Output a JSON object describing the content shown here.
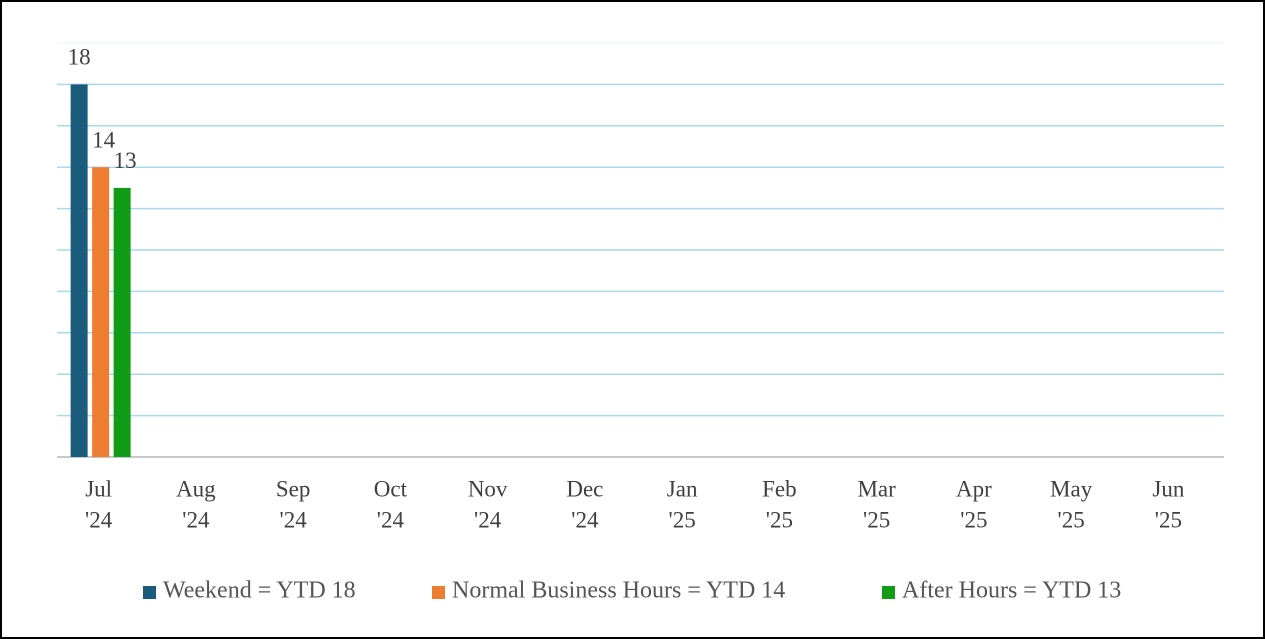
{
  "chart_data": {
    "type": "bar",
    "categories": [
      [
        "Jul",
        "'24"
      ],
      [
        "Aug",
        "'24"
      ],
      [
        "Sep",
        "'24"
      ],
      [
        "Oct",
        "'24"
      ],
      [
        "Nov",
        "'24"
      ],
      [
        "Dec",
        "'24"
      ],
      [
        "Jan",
        "'25"
      ],
      [
        "Feb",
        "'25"
      ],
      [
        "Mar",
        "'25"
      ],
      [
        "Apr",
        "'25"
      ],
      [
        "May",
        "'25"
      ],
      [
        "Jun",
        "'25"
      ]
    ],
    "series": [
      {
        "name": "Weekend = YTD 18",
        "color": "#1b5c7c",
        "values": [
          18,
          null,
          null,
          null,
          null,
          null,
          null,
          null,
          null,
          null,
          null,
          null
        ]
      },
      {
        "name": "Normal Business Hours = YTD 14",
        "color": "#ed7d31",
        "values": [
          14,
          null,
          null,
          null,
          null,
          null,
          null,
          null,
          null,
          null,
          null,
          null
        ]
      },
      {
        "name": "After Hours = YTD 13",
        "color": "#109c16",
        "values": [
          13,
          null,
          null,
          null,
          null,
          null,
          null,
          null,
          null,
          null,
          null,
          null
        ]
      }
    ],
    "ylim": [
      0,
      20
    ],
    "yticks": [
      0,
      2,
      4,
      6,
      8,
      10,
      12,
      14,
      16,
      18,
      20
    ],
    "grid": true,
    "data_labels": true,
    "legend": "bottom"
  }
}
